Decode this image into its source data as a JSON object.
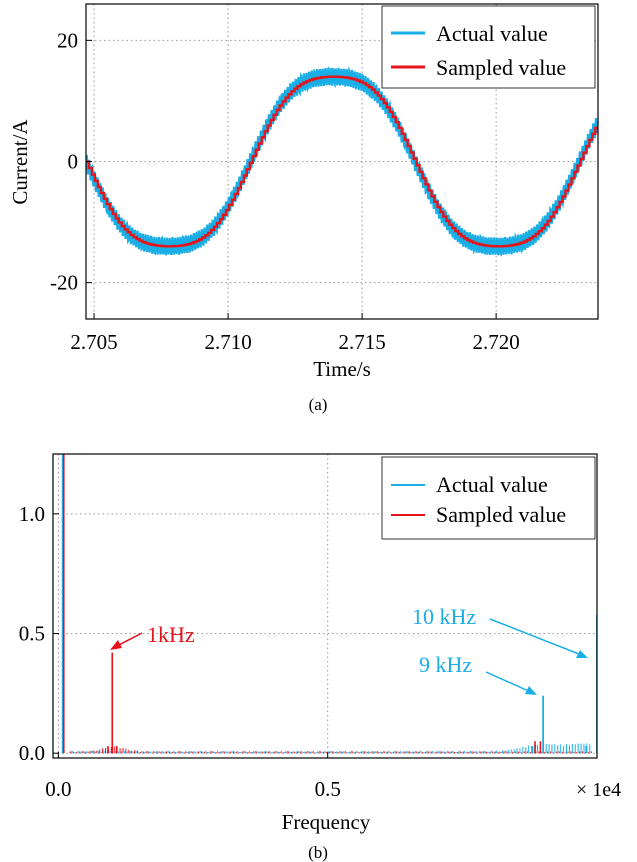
{
  "colors": {
    "actual": "#1aaee6",
    "sampled": "#e5141b",
    "grid": "#999999"
  },
  "chart_data": [
    {
      "panel_label": "(a)",
      "type": "line",
      "xlabel": "Time/s",
      "ylabel": "Current/A",
      "xlim": [
        2.7047,
        2.7238
      ],
      "ylim": [
        -26,
        26
      ],
      "xticks": [
        2.705,
        2.71,
        2.715,
        2.72
      ],
      "xtick_labels": [
        "2.705",
        "2.710",
        "2.715",
        "2.720"
      ],
      "yticks": [
        20,
        0,
        -20
      ],
      "ytick_labels": [
        "20",
        "0",
        "-20"
      ],
      "grid": true,
      "legend_position": "top-right",
      "series": [
        {
          "name": "Actual value",
          "color": "#1aaee6",
          "amplitude_fundamental": 15.2,
          "frequency_hz": 81.5,
          "peak_time": 2.7139,
          "harmonic_amplitude": 1.2,
          "ripple_amplitude": 1.5,
          "ripple_frequency_hz": 10000
        },
        {
          "name": "Sampled value",
          "color": "#e5141b",
          "amplitude_fundamental": 15.2,
          "frequency_hz": 81.5,
          "peak_time": 2.7139,
          "harmonic_amplitude": 1.2,
          "sample_rate_hz": 9000
        }
      ]
    },
    {
      "panel_label": "(b)",
      "type": "bar",
      "xlabel": "Frequency",
      "x_multiplier": "× 1e4",
      "xlim": [
        -0.01,
        1.0
      ],
      "ylim": [
        -0.02,
        1.25
      ],
      "xticks": [
        0.0,
        0.5
      ],
      "xtick_labels": [
        "0.0",
        "0.5"
      ],
      "yticks": [
        1.0,
        0.5,
        0.0
      ],
      "ytick_labels": [
        "1.0",
        "0.5",
        "0.0"
      ],
      "grid": true,
      "legend_position": "top-right",
      "series": [
        {
          "name": "Actual value",
          "color": "#1aaee6",
          "peaks": [
            {
              "x": 0.008,
              "y": 1.25
            },
            {
              "x": 0.9,
              "y": 0.24
            },
            {
              "x": 0.88,
              "y": 0.03
            },
            {
              "x": 0.98,
              "y": 0.03
            },
            {
              "x": 1.0,
              "y": 0.58
            }
          ]
        },
        {
          "name": "Sampled value",
          "color": "#e5141b",
          "peaks": [
            {
              "x": 0.01,
              "y": 1.25
            },
            {
              "x": 0.1,
              "y": 0.42
            },
            {
              "x": 0.092,
              "y": 0.03
            },
            {
              "x": 0.108,
              "y": 0.03
            },
            {
              "x": 0.885,
              "y": 0.05
            },
            {
              "x": 0.895,
              "y": 0.05
            },
            {
              "x": 1.002,
              "y": 0.04
            }
          ]
        }
      ],
      "annotations": [
        {
          "text": "1kHz",
          "color": "#e5141b",
          "target_x": 0.1,
          "target_y": 0.42
        },
        {
          "text": "9 kHz",
          "color": "#1aaee6",
          "target_x": 0.9,
          "target_y": 0.24
        },
        {
          "text": "10 kHz",
          "color": "#1aaee6",
          "target_x": 1.0,
          "target_y": 0.58
        }
      ]
    }
  ]
}
